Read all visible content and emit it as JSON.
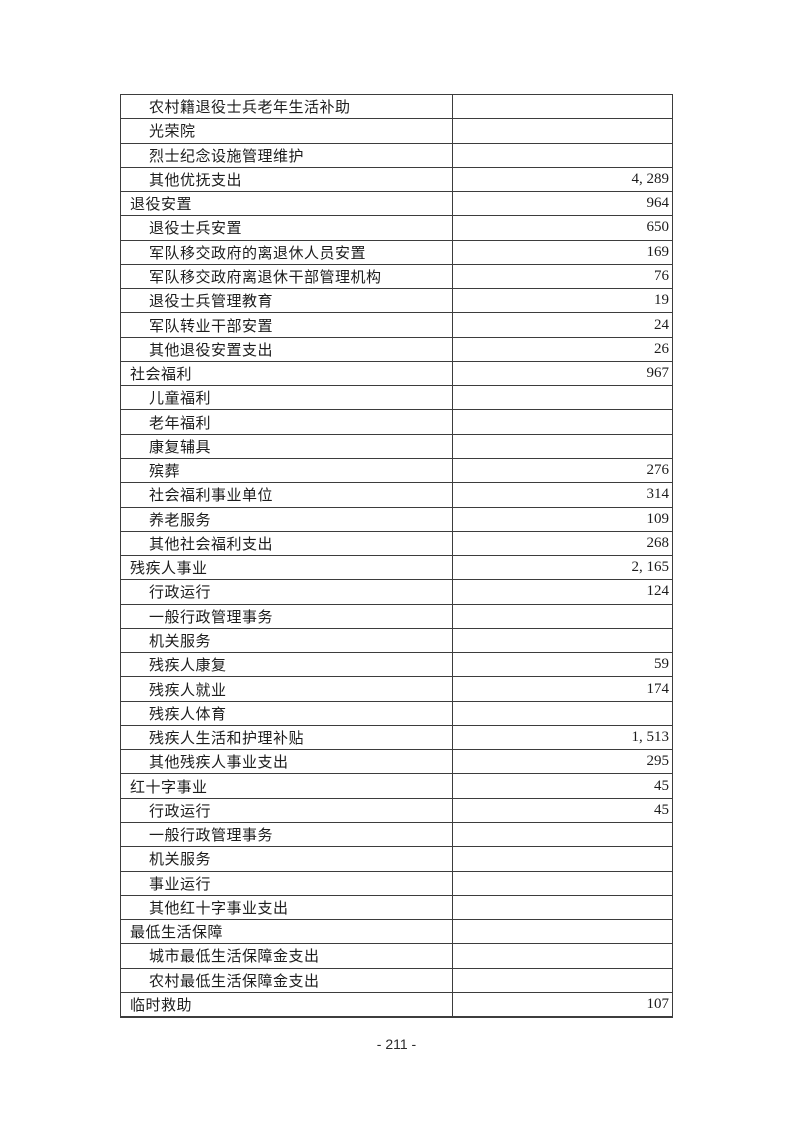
{
  "page": {
    "footer_page_number": "- 211 -"
  },
  "table": {
    "rows": [
      {
        "label": "农村籍退役士兵老年生活补助",
        "indent": 2,
        "value": ""
      },
      {
        "label": "光荣院",
        "indent": 2,
        "value": ""
      },
      {
        "label": "烈士纪念设施管理维护",
        "indent": 2,
        "value": ""
      },
      {
        "label": "其他优抚支出",
        "indent": 2,
        "value": "4, 289"
      },
      {
        "label": "退役安置",
        "indent": 1,
        "value": "964"
      },
      {
        "label": "退役士兵安置",
        "indent": 2,
        "value": "650"
      },
      {
        "label": "军队移交政府的离退休人员安置",
        "indent": 2,
        "value": "169"
      },
      {
        "label": "军队移交政府离退休干部管理机构",
        "indent": 2,
        "value": "76"
      },
      {
        "label": "退役士兵管理教育",
        "indent": 2,
        "value": "19"
      },
      {
        "label": "军队转业干部安置",
        "indent": 2,
        "value": "24"
      },
      {
        "label": "其他退役安置支出",
        "indent": 2,
        "value": "26"
      },
      {
        "label": "社会福利",
        "indent": 1,
        "value": "967"
      },
      {
        "label": "儿童福利",
        "indent": 2,
        "value": ""
      },
      {
        "label": "老年福利",
        "indent": 2,
        "value": ""
      },
      {
        "label": "康复辅具",
        "indent": 2,
        "value": ""
      },
      {
        "label": "殡葬",
        "indent": 2,
        "value": "276"
      },
      {
        "label": "社会福利事业单位",
        "indent": 2,
        "value": "314"
      },
      {
        "label": "养老服务",
        "indent": 2,
        "value": "109"
      },
      {
        "label": "其他社会福利支出",
        "indent": 2,
        "value": "268"
      },
      {
        "label": "残疾人事业",
        "indent": 1,
        "value": "2, 165"
      },
      {
        "label": "行政运行",
        "indent": 2,
        "value": "124"
      },
      {
        "label": "一般行政管理事务",
        "indent": 2,
        "value": ""
      },
      {
        "label": "机关服务",
        "indent": 2,
        "value": ""
      },
      {
        "label": "残疾人康复",
        "indent": 2,
        "value": "59"
      },
      {
        "label": "残疾人就业",
        "indent": 2,
        "value": "174"
      },
      {
        "label": "残疾人体育",
        "indent": 2,
        "value": ""
      },
      {
        "label": "残疾人生活和护理补贴",
        "indent": 2,
        "value": "1, 513"
      },
      {
        "label": "其他残疾人事业支出",
        "indent": 2,
        "value": "295"
      },
      {
        "label": "红十字事业",
        "indent": 1,
        "value": "45"
      },
      {
        "label": "行政运行",
        "indent": 2,
        "value": "45"
      },
      {
        "label": "一般行政管理事务",
        "indent": 2,
        "value": ""
      },
      {
        "label": "机关服务",
        "indent": 2,
        "value": ""
      },
      {
        "label": "事业运行",
        "indent": 2,
        "value": ""
      },
      {
        "label": "其他红十字事业支出",
        "indent": 2,
        "value": ""
      },
      {
        "label": "最低生活保障",
        "indent": 1,
        "value": ""
      },
      {
        "label": "城市最低生活保障金支出",
        "indent": 2,
        "value": ""
      },
      {
        "label": "农村最低生活保障金支出",
        "indent": 2,
        "value": ""
      },
      {
        "label": "临时救助",
        "indent": 1,
        "value": "107"
      }
    ]
  }
}
